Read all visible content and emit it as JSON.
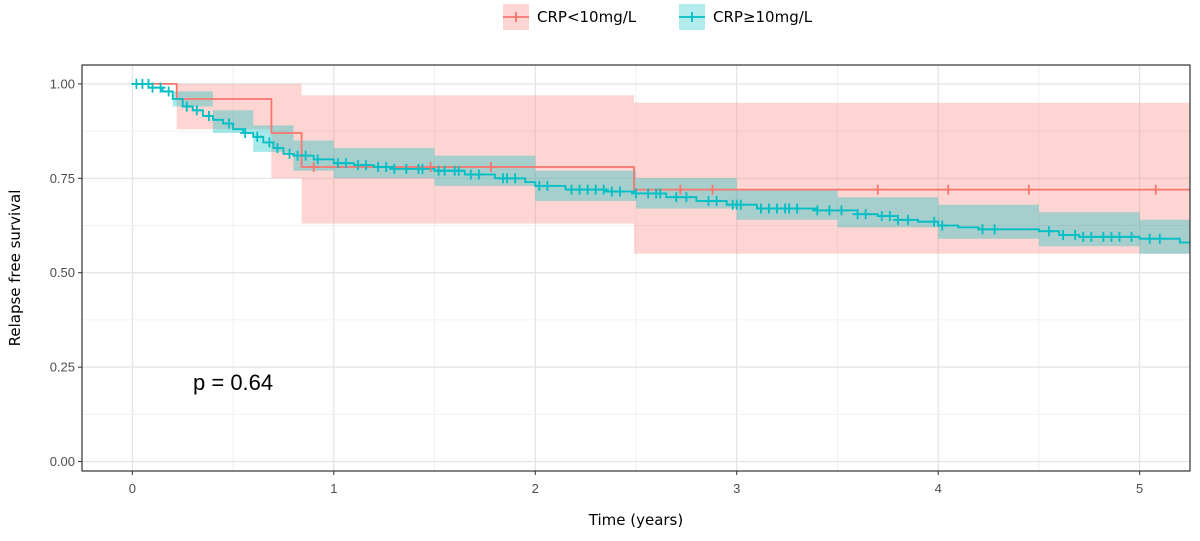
{
  "chart_data": {
    "type": "line",
    "subtype": "kaplan-meier",
    "xlabel": "Time (years)",
    "ylabel": "Relapse free survival",
    "xlim": [
      -0.25,
      5.25
    ],
    "ylim": [
      -0.025,
      1.05
    ],
    "x_ticks": [
      0,
      1,
      2,
      3,
      4,
      5
    ],
    "x_tick_labels": [
      "0",
      "1",
      "2",
      "3",
      "4",
      "5"
    ],
    "y_ticks": [
      0,
      0.25,
      0.5,
      0.75,
      1.0
    ],
    "y_tick_labels": [
      "0.00",
      "0.25",
      "0.50",
      "0.75",
      "1.00"
    ],
    "grid": true,
    "legend_position": "top",
    "annotation": "p = 0.64",
    "annotation_at": {
      "x": 0.5,
      "y": 0.19
    },
    "series": [
      {
        "name": "CRP<10mg/L",
        "color": "#F8766D",
        "band_color": "#F8766D",
        "steps": [
          [
            0,
            1.0
          ],
          [
            0.22,
            0.96
          ],
          [
            0.69,
            0.87
          ],
          [
            0.84,
            0.78
          ],
          [
            2.49,
            0.72
          ],
          [
            5.25,
            0.72
          ]
        ],
        "band": [
          [
            0,
            1.0,
            1.0
          ],
          [
            0.22,
            0.88,
            1.0
          ],
          [
            0.69,
            0.75,
            1.0
          ],
          [
            0.84,
            0.63,
            0.97
          ],
          [
            2.49,
            0.55,
            0.95
          ],
          [
            5.25,
            0.55,
            0.95
          ]
        ],
        "censor_times": [
          0.9,
          1.48,
          1.78,
          2.72,
          2.88,
          3.7,
          4.05,
          4.45,
          5.08
        ]
      },
      {
        "name": "CRP≥10mg/L",
        "color": "#00BFC4",
        "band_color": "#00BFC4",
        "steps": [
          [
            0,
            1.0
          ],
          [
            0.1,
            0.99
          ],
          [
            0.15,
            0.98
          ],
          [
            0.2,
            0.96
          ],
          [
            0.25,
            0.94
          ],
          [
            0.3,
            0.93
          ],
          [
            0.35,
            0.915
          ],
          [
            0.4,
            0.905
          ],
          [
            0.45,
            0.895
          ],
          [
            0.5,
            0.88
          ],
          [
            0.55,
            0.87
          ],
          [
            0.6,
            0.86
          ],
          [
            0.65,
            0.845
          ],
          [
            0.7,
            0.83
          ],
          [
            0.75,
            0.815
          ],
          [
            0.8,
            0.81
          ],
          [
            0.9,
            0.8
          ],
          [
            1.0,
            0.79
          ],
          [
            1.1,
            0.785
          ],
          [
            1.2,
            0.78
          ],
          [
            1.3,
            0.775
          ],
          [
            1.5,
            0.77
          ],
          [
            1.65,
            0.76
          ],
          [
            1.8,
            0.75
          ],
          [
            1.95,
            0.74
          ],
          [
            2.0,
            0.73
          ],
          [
            2.15,
            0.72
          ],
          [
            2.35,
            0.715
          ],
          [
            2.5,
            0.71
          ],
          [
            2.65,
            0.7
          ],
          [
            2.8,
            0.69
          ],
          [
            2.95,
            0.68
          ],
          [
            3.1,
            0.67
          ],
          [
            3.4,
            0.665
          ],
          [
            3.6,
            0.655
          ],
          [
            3.7,
            0.65
          ],
          [
            3.8,
            0.64
          ],
          [
            3.9,
            0.635
          ],
          [
            4.0,
            0.625
          ],
          [
            4.1,
            0.62
          ],
          [
            4.2,
            0.615
          ],
          [
            4.5,
            0.61
          ],
          [
            4.6,
            0.6
          ],
          [
            4.7,
            0.595
          ],
          [
            5.0,
            0.59
          ],
          [
            5.2,
            0.58
          ],
          [
            5.25,
            0.58
          ]
        ],
        "band": [
          [
            0,
            1.0,
            1.0
          ],
          [
            0.2,
            0.94,
            0.98
          ],
          [
            0.4,
            0.87,
            0.93
          ],
          [
            0.6,
            0.82,
            0.89
          ],
          [
            0.8,
            0.77,
            0.85
          ],
          [
            1.0,
            0.75,
            0.83
          ],
          [
            1.5,
            0.73,
            0.81
          ],
          [
            2.0,
            0.69,
            0.77
          ],
          [
            2.5,
            0.67,
            0.75
          ],
          [
            3.0,
            0.64,
            0.72
          ],
          [
            3.5,
            0.62,
            0.7
          ],
          [
            4.0,
            0.59,
            0.68
          ],
          [
            4.5,
            0.57,
            0.66
          ],
          [
            5.0,
            0.55,
            0.64
          ],
          [
            5.25,
            0.52,
            0.65
          ]
        ],
        "censor_times": [
          0.02,
          0.05,
          0.08,
          0.1,
          0.14,
          0.18,
          0.27,
          0.32,
          0.38,
          0.48,
          0.56,
          0.62,
          0.68,
          0.72,
          0.78,
          0.82,
          0.86,
          0.92,
          1.02,
          1.06,
          1.12,
          1.16,
          1.22,
          1.26,
          1.3,
          1.36,
          1.42,
          1.44,
          1.52,
          1.55,
          1.6,
          1.62,
          1.68,
          1.72,
          1.84,
          1.86,
          1.9,
          2.02,
          2.06,
          2.18,
          2.22,
          2.26,
          2.3,
          2.34,
          2.38,
          2.42,
          2.5,
          2.56,
          2.6,
          2.62,
          2.7,
          2.75,
          2.86,
          2.9,
          2.98,
          3.0,
          3.02,
          3.12,
          3.16,
          3.2,
          3.24,
          3.26,
          3.3,
          3.4,
          3.46,
          3.52,
          3.6,
          3.64,
          3.72,
          3.76,
          3.8,
          3.85,
          3.98,
          4.02,
          4.22,
          4.28,
          4.55,
          4.62,
          4.68,
          4.72,
          4.76,
          4.82,
          4.86,
          4.9,
          4.96,
          5.05,
          5.1
        ]
      }
    ]
  }
}
